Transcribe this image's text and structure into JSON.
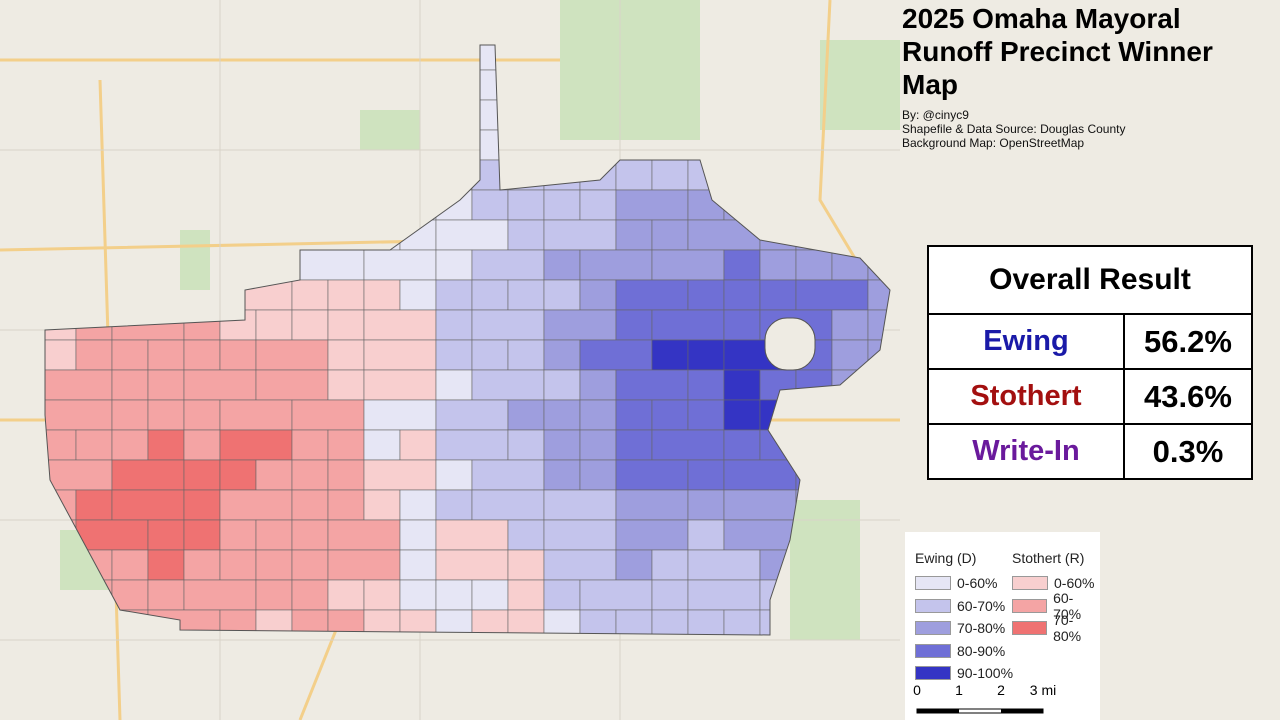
{
  "title": "2025 Omaha Mayoral Runoff Precinct Winner Map",
  "credits": [
    "By: @cinyc9",
    "Shapefile & Data Source: Douglas County",
    "Background Map: OpenStreetMap"
  ],
  "results": {
    "header": "Overall Result",
    "rows": [
      {
        "name": "Ewing",
        "share": "56.2%",
        "color": "#1a1aa8"
      },
      {
        "name": "Stothert",
        "share": "43.6%",
        "color": "#a30f0f"
      },
      {
        "name": "Write-In",
        "share": "0.3%",
        "color": "#6a1a9c"
      }
    ]
  },
  "legend": {
    "groups": [
      {
        "title": "Ewing (D)",
        "items": [
          {
            "label": "0-60%",
            "color": "#e6e6f5"
          },
          {
            "label": "60-70%",
            "color": "#c4c4ec"
          },
          {
            "label": "70-80%",
            "color": "#9e9ede"
          },
          {
            "label": "80-90%",
            "color": "#6f6fd6"
          },
          {
            "label": "90-100%",
            "color": "#3434c4"
          }
        ]
      },
      {
        "title": "Stothert (R)",
        "items": [
          {
            "label": "0-60%",
            "color": "#f8cfcf"
          },
          {
            "label": "60-70%",
            "color": "#f4a4a4"
          },
          {
            "label": "70-80%",
            "color": "#ef7272"
          }
        ]
      }
    ]
  },
  "scale_bar": {
    "labels": [
      "0",
      "1",
      "2",
      "3 mi"
    ]
  }
}
